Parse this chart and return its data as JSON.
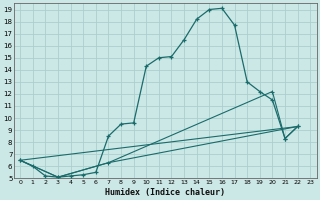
{
  "xlabel": "Humidex (Indice chaleur)",
  "background_color": "#cce8e6",
  "grid_color": "#aacfcc",
  "line_color": "#1a6b6b",
  "xlim": [
    -0.5,
    23.5
  ],
  "ylim": [
    5,
    19.5
  ],
  "xticks": [
    0,
    1,
    2,
    3,
    4,
    5,
    6,
    7,
    8,
    9,
    10,
    11,
    12,
    13,
    14,
    15,
    16,
    17,
    18,
    19,
    20,
    21,
    22,
    23
  ],
  "yticks": [
    5,
    6,
    7,
    8,
    9,
    10,
    11,
    12,
    13,
    14,
    15,
    16,
    17,
    18,
    19
  ],
  "main_series": [
    [
      0,
      6.5
    ],
    [
      1,
      6.0
    ],
    [
      2,
      5.2
    ],
    [
      3,
      5.1
    ],
    [
      4,
      5.2
    ],
    [
      5,
      5.3
    ],
    [
      6,
      5.5
    ],
    [
      7,
      8.5
    ],
    [
      8,
      9.5
    ],
    [
      9,
      9.6
    ],
    [
      10,
      14.3
    ],
    [
      11,
      15.0
    ],
    [
      12,
      15.1
    ],
    [
      13,
      16.5
    ],
    [
      14,
      18.2
    ],
    [
      15,
      19.0
    ],
    [
      16,
      19.1
    ],
    [
      17,
      17.7
    ],
    [
      18,
      13.0
    ],
    [
      19,
      12.2
    ],
    [
      20,
      11.5
    ],
    [
      21,
      8.3
    ],
    [
      22,
      9.3
    ]
  ],
  "line2": [
    [
      0,
      6.5
    ],
    [
      3,
      5.1
    ],
    [
      7,
      6.3
    ],
    [
      20,
      12.2
    ],
    [
      21,
      8.3
    ],
    [
      22,
      9.3
    ]
  ],
  "line3": [
    [
      0,
      6.5
    ],
    [
      3,
      5.1
    ],
    [
      7,
      6.3
    ],
    [
      22,
      9.3
    ]
  ],
  "line4": [
    [
      0,
      6.5
    ],
    [
      22,
      9.3
    ]
  ]
}
